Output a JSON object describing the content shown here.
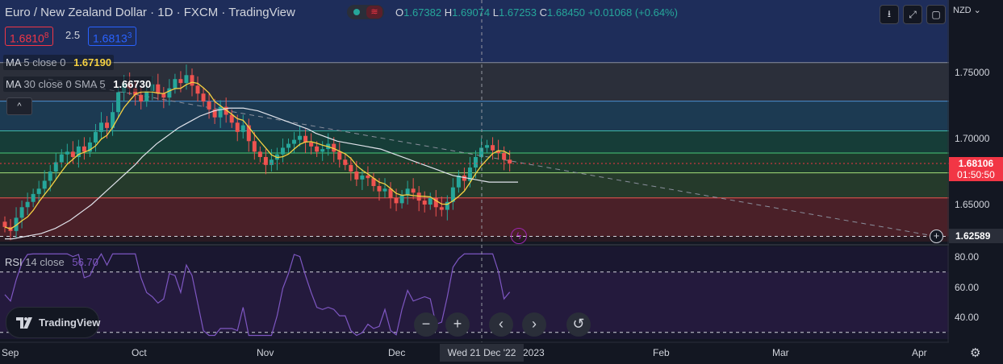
{
  "header": {
    "title": "Euro / New Zealand Dollar · 1D · FXCM · TradingView",
    "ohlc": {
      "o_label": "O",
      "o": "1.67382",
      "h_label": "H",
      "h": "1.69074",
      "l_label": "L",
      "l": "1.67253",
      "c_label": "C",
      "c": "1.68450",
      "change": "+0.01068 (+0.64%)"
    },
    "sell_price_main": "1.6810",
    "sell_price_sup": "8",
    "spread": "2.5",
    "buy_price_main": "1.6813",
    "buy_price_sup": "3",
    "currency": "NZD",
    "toggle_icon": "market-open-icon"
  },
  "indicators": {
    "ma5": {
      "name": "MA",
      "args": "5 close 0",
      "value": "1.67190",
      "color": "#f5d142"
    },
    "ma30": {
      "name": "MA",
      "args": "30 close 0 SMA 5",
      "value": "1.66730",
      "color": "#ffffff"
    },
    "rsi": {
      "name": "RSI",
      "args": "14 close",
      "value": "56.70",
      "color": "#7e57c2"
    }
  },
  "price_axis": {
    "ticks": [
      "1.75000",
      "1.70000",
      "1.65000"
    ],
    "current_price": "1.68106",
    "countdown": "01:50:50",
    "hover_price": "1.62589"
  },
  "rsi_axis": {
    "ticks": [
      "80.00",
      "60.00",
      "40.00"
    ]
  },
  "time_axis": {
    "ticks": [
      "Sep",
      "Oct",
      "Nov",
      "Dec",
      "2023",
      "Feb",
      "Mar",
      "Apr"
    ],
    "hover_date": "Wed 21 Dec '22"
  },
  "logo": {
    "text": "TradingView"
  },
  "controls": {
    "zoom_out": "−",
    "zoom_in": "+",
    "scroll_left": "‹",
    "scroll_right": "›",
    "reset": "↺",
    "collapse": "^"
  },
  "colors": {
    "up": "#26a69a",
    "down": "#ef5350",
    "background": "#131722",
    "ma5": "#f5d142",
    "ma30": "#e0e3eb",
    "rsi": "#7e57c2"
  },
  "chart_data": {
    "type": "candlestick",
    "title": "Euro / New Zealand Dollar · 1D · FXCM",
    "x": [
      "Sep",
      "Oct",
      "Nov",
      "Dec",
      "2023",
      "Feb",
      "Mar",
      "Apr"
    ],
    "ylim": [
      1.622,
      1.77
    ],
    "price_ticks": [
      1.75,
      1.7,
      1.65
    ],
    "last_close": 1.68106,
    "horizontal_levels": [
      1.7575,
      1.7283,
      1.7058,
      1.689,
      1.674,
      1.655,
      1.6259
    ],
    "closes": [
      1.633,
      1.63,
      1.64,
      1.648,
      1.652,
      1.658,
      1.662,
      1.668,
      1.675,
      1.682,
      1.688,
      1.69,
      1.686,
      1.694,
      1.69,
      1.697,
      1.705,
      1.712,
      1.708,
      1.72,
      1.735,
      1.742,
      1.738,
      1.733,
      1.728,
      1.736,
      1.741,
      1.734,
      1.731,
      1.738,
      1.745,
      1.742,
      1.748,
      1.74,
      1.734,
      1.728,
      1.722,
      1.716,
      1.724,
      1.718,
      1.712,
      1.705,
      1.71,
      1.698,
      1.69,
      1.686,
      1.68,
      1.684,
      1.688,
      1.693,
      1.696,
      1.699,
      1.702,
      1.697,
      1.694,
      1.69,
      1.692,
      1.696,
      1.69,
      1.684,
      1.68,
      1.675,
      1.669,
      1.672,
      1.67,
      1.664,
      1.66,
      1.662,
      1.655,
      1.651,
      1.657,
      1.662,
      1.659,
      1.653,
      1.65,
      1.655,
      1.648,
      1.646,
      1.652,
      1.663,
      1.672,
      1.668,
      1.678,
      1.686,
      1.693,
      1.695,
      1.691,
      1.689,
      1.684,
      1.681
    ],
    "ma30_values": [
      1.624,
      1.624,
      1.625,
      1.626,
      1.627,
      1.628,
      1.63,
      1.632,
      1.635,
      1.638,
      1.642,
      1.646,
      1.65,
      1.655,
      1.66,
      1.665,
      1.67,
      1.675,
      1.68,
      1.686,
      1.691,
      1.696,
      1.7,
      1.704,
      1.708,
      1.711,
      1.714,
      1.717,
      1.719,
      1.721,
      1.722,
      1.723,
      1.723,
      1.723,
      1.722,
      1.721,
      1.719,
      1.717,
      1.715,
      1.713,
      1.711,
      1.709,
      1.707,
      1.704,
      1.702,
      1.7,
      1.698,
      1.697,
      1.696,
      1.695,
      1.694,
      1.693,
      1.692,
      1.69,
      1.688,
      1.686,
      1.684,
      1.682,
      1.68,
      1.678,
      1.676,
      1.674,
      1.672,
      1.671,
      1.67,
      1.669,
      1.668,
      1.667,
      1.667,
      1.667,
      1.667,
      1.667
    ],
    "rsi": {
      "ylim": [
        20,
        90
      ],
      "ticks": [
        80,
        60,
        40
      ],
      "levels": [
        70,
        30
      ],
      "last": 56.7
    }
  }
}
